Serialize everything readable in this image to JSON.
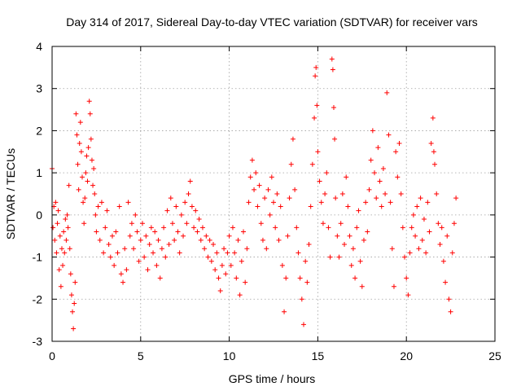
{
  "chart_data": {
    "type": "scatter",
    "title": "Day 314 of 2017, Sidereal Day-to-day VTEC variation (SDTVAR) for receiver vars",
    "xlabel": "GPS time / hours",
    "ylabel": "SDTVAR / TECUs",
    "xlim": [
      0,
      25
    ],
    "ylim": [
      -3,
      4
    ],
    "xticks": [
      0,
      5,
      10,
      15,
      20,
      25
    ],
    "yticks": [
      -3,
      -2,
      -1,
      0,
      1,
      2,
      3,
      4
    ],
    "grid": true,
    "marker": "+",
    "color": "#ff0000",
    "series": [
      {
        "name": "SDTVAR",
        "points": [
          [
            0.0,
            1.1
          ],
          [
            0.05,
            -0.3
          ],
          [
            0.1,
            0.2
          ],
          [
            0.15,
            -0.6
          ],
          [
            0.2,
            0.3
          ],
          [
            0.25,
            -0.9
          ],
          [
            0.3,
            -0.2
          ],
          [
            0.35,
            0.1
          ],
          [
            0.4,
            -1.3
          ],
          [
            0.45,
            -0.5
          ],
          [
            0.5,
            -1.7
          ],
          [
            0.55,
            -0.8
          ],
          [
            0.6,
            -1.2
          ],
          [
            0.65,
            -0.4
          ],
          [
            0.7,
            -0.9
          ],
          [
            0.75,
            -0.1
          ],
          [
            0.8,
            -0.6
          ],
          [
            0.85,
            0.0
          ],
          [
            0.9,
            -0.3
          ],
          [
            0.95,
            0.7
          ],
          [
            1.0,
            -0.8
          ],
          [
            1.05,
            -1.4
          ],
          [
            1.1,
            -1.9
          ],
          [
            1.15,
            -2.3
          ],
          [
            1.2,
            -2.7
          ],
          [
            1.25,
            -2.1
          ],
          [
            1.3,
            -1.6
          ],
          [
            1.35,
            2.4
          ],
          [
            1.4,
            1.9
          ],
          [
            1.45,
            1.2
          ],
          [
            1.5,
            0.6
          ],
          [
            1.55,
            1.7
          ],
          [
            1.6,
            2.2
          ],
          [
            1.65,
            1.5
          ],
          [
            1.7,
            0.9
          ],
          [
            1.75,
            0.3
          ],
          [
            1.8,
            -0.2
          ],
          [
            1.85,
            0.4
          ],
          [
            1.9,
            1.0
          ],
          [
            1.95,
            1.4
          ],
          [
            2.0,
            0.8
          ],
          [
            2.05,
            1.6
          ],
          [
            2.1,
            2.7
          ],
          [
            2.15,
            2.4
          ],
          [
            2.2,
            1.8
          ],
          [
            2.25,
            1.3
          ],
          [
            2.3,
            0.7
          ],
          [
            2.35,
            1.1
          ],
          [
            2.4,
            0.5
          ],
          [
            2.45,
            0.0
          ],
          [
            2.5,
            -0.4
          ],
          [
            2.6,
            0.2
          ],
          [
            2.7,
            -0.6
          ],
          [
            2.8,
            0.3
          ],
          [
            2.9,
            -0.9
          ],
          [
            3.0,
            -0.3
          ],
          [
            3.1,
            0.1
          ],
          [
            3.2,
            -0.7
          ],
          [
            3.3,
            -1.0
          ],
          [
            3.4,
            -0.5
          ],
          [
            3.5,
            -1.2
          ],
          [
            3.6,
            -0.4
          ],
          [
            3.7,
            -0.9
          ],
          [
            3.8,
            0.2
          ],
          [
            3.9,
            -1.4
          ],
          [
            4.0,
            -1.6
          ],
          [
            4.1,
            -0.8
          ],
          [
            4.2,
            -1.3
          ],
          [
            4.3,
            0.3
          ],
          [
            4.4,
            -0.5
          ],
          [
            4.5,
            -0.2
          ],
          [
            4.6,
            -0.8
          ],
          [
            4.7,
            0.0
          ],
          [
            4.8,
            -0.4
          ],
          [
            4.9,
            -1.1
          ],
          [
            5.0,
            -0.6
          ],
          [
            5.1,
            -0.2
          ],
          [
            5.2,
            -1.0
          ],
          [
            5.3,
            -0.5
          ],
          [
            5.4,
            -1.3
          ],
          [
            5.5,
            -0.7
          ],
          [
            5.6,
            -0.3
          ],
          [
            5.7,
            -0.9
          ],
          [
            5.8,
            -0.4
          ],
          [
            5.9,
            -1.2
          ],
          [
            6.0,
            -0.6
          ],
          [
            6.1,
            -1.5
          ],
          [
            6.2,
            -0.8
          ],
          [
            6.3,
            -0.3
          ],
          [
            6.4,
            -1.0
          ],
          [
            6.5,
            0.1
          ],
          [
            6.6,
            -0.7
          ],
          [
            6.7,
            0.4
          ],
          [
            6.8,
            -0.2
          ],
          [
            6.9,
            -0.6
          ],
          [
            7.0,
            0.2
          ],
          [
            7.1,
            -0.4
          ],
          [
            7.2,
            -0.9
          ],
          [
            7.3,
            0.0
          ],
          [
            7.4,
            -0.5
          ],
          [
            7.5,
            0.3
          ],
          [
            7.6,
            -0.2
          ],
          [
            7.7,
            0.5
          ],
          [
            7.8,
            0.8
          ],
          [
            7.9,
            0.2
          ],
          [
            8.0,
            -0.3
          ],
          [
            8.1,
            0.1
          ],
          [
            8.2,
            -0.4
          ],
          [
            8.3,
            -0.1
          ],
          [
            8.4,
            -0.6
          ],
          [
            8.5,
            -0.3
          ],
          [
            8.6,
            -0.8
          ],
          [
            8.7,
            -0.5
          ],
          [
            8.8,
            -1.0
          ],
          [
            8.9,
            -0.6
          ],
          [
            9.0,
            -1.1
          ],
          [
            9.1,
            -0.7
          ],
          [
            9.2,
            -1.3
          ],
          [
            9.3,
            -0.9
          ],
          [
            9.4,
            -1.5
          ],
          [
            9.5,
            -1.8
          ],
          [
            9.6,
            -1.2
          ],
          [
            9.7,
            -0.8
          ],
          [
            9.8,
            -1.4
          ],
          [
            9.9,
            -0.9
          ],
          [
            10.0,
            -0.5
          ],
          [
            10.1,
            -1.2
          ],
          [
            10.2,
            -0.3
          ],
          [
            10.3,
            -0.9
          ],
          [
            10.4,
            -1.5
          ],
          [
            10.5,
            -0.6
          ],
          [
            10.6,
            -1.9
          ],
          [
            10.7,
            -1.1
          ],
          [
            10.8,
            -0.4
          ],
          [
            10.9,
            -1.6
          ],
          [
            11.0,
            -0.8
          ],
          [
            11.1,
            0.3
          ],
          [
            11.2,
            0.9
          ],
          [
            11.3,
            1.3
          ],
          [
            11.4,
            0.6
          ],
          [
            11.5,
            1.0
          ],
          [
            11.6,
            0.2
          ],
          [
            11.7,
            0.7
          ],
          [
            11.8,
            -0.2
          ],
          [
            11.9,
            -0.6
          ],
          [
            12.0,
            0.4
          ],
          [
            12.1,
            -0.8
          ],
          [
            12.2,
            0.6
          ],
          [
            12.3,
            0.0
          ],
          [
            12.4,
            0.9
          ],
          [
            12.5,
            0.3
          ],
          [
            12.6,
            -0.3
          ],
          [
            12.7,
            0.5
          ],
          [
            12.8,
            -0.6
          ],
          [
            12.9,
            0.2
          ],
          [
            13.0,
            -1.2
          ],
          [
            13.1,
            -2.3
          ],
          [
            13.2,
            -1.5
          ],
          [
            13.3,
            -0.5
          ],
          [
            13.4,
            0.4
          ],
          [
            13.5,
            1.2
          ],
          [
            13.6,
            1.8
          ],
          [
            13.7,
            0.6
          ],
          [
            13.8,
            -0.3
          ],
          [
            13.9,
            -0.9
          ],
          [
            14.0,
            -1.5
          ],
          [
            14.1,
            -2.0
          ],
          [
            14.2,
            -2.6
          ],
          [
            14.3,
            -1.1
          ],
          [
            14.4,
            -1.6
          ],
          [
            14.5,
            -0.7
          ],
          [
            14.6,
            0.2
          ],
          [
            14.7,
            1.2
          ],
          [
            14.8,
            2.3
          ],
          [
            14.85,
            3.3
          ],
          [
            14.9,
            3.5
          ],
          [
            14.95,
            2.6
          ],
          [
            15.0,
            1.5
          ],
          [
            15.1,
            0.8
          ],
          [
            15.2,
            0.3
          ],
          [
            15.3,
            -0.2
          ],
          [
            15.4,
            0.5
          ],
          [
            15.5,
            1.0
          ],
          [
            15.6,
            -0.3
          ],
          [
            15.7,
            -1.0
          ],
          [
            15.8,
            3.7
          ],
          [
            15.85,
            3.45
          ],
          [
            15.9,
            2.55
          ],
          [
            15.95,
            1.8
          ],
          [
            16.0,
            0.4
          ],
          [
            16.1,
            -0.5
          ],
          [
            16.2,
            -1.0
          ],
          [
            16.3,
            -0.2
          ],
          [
            16.4,
            0.5
          ],
          [
            16.5,
            -0.7
          ],
          [
            16.6,
            0.9
          ],
          [
            16.7,
            0.2
          ],
          [
            16.8,
            -0.5
          ],
          [
            16.9,
            -1.2
          ],
          [
            17.0,
            -0.8
          ],
          [
            17.1,
            -1.5
          ],
          [
            17.2,
            -0.3
          ],
          [
            17.3,
            0.1
          ],
          [
            17.4,
            -1.1
          ],
          [
            17.5,
            -1.7
          ],
          [
            17.6,
            -0.6
          ],
          [
            17.7,
            0.3
          ],
          [
            17.8,
            -0.4
          ],
          [
            17.9,
            0.6
          ],
          [
            18.0,
            1.3
          ],
          [
            18.1,
            2.0
          ],
          [
            18.2,
            1.0
          ],
          [
            18.3,
            0.4
          ],
          [
            18.4,
            1.6
          ],
          [
            18.5,
            0.8
          ],
          [
            18.6,
            0.2
          ],
          [
            18.7,
            1.1
          ],
          [
            18.8,
            0.5
          ],
          [
            18.9,
            2.9
          ],
          [
            19.0,
            1.9
          ],
          [
            19.1,
            0.3
          ],
          [
            19.2,
            -0.8
          ],
          [
            19.3,
            -1.7
          ],
          [
            19.4,
            1.5
          ],
          [
            19.5,
            0.9
          ],
          [
            19.6,
            1.7
          ],
          [
            19.7,
            0.5
          ],
          [
            19.8,
            -0.3
          ],
          [
            19.9,
            -1.0
          ],
          [
            20.0,
            -1.5
          ],
          [
            20.1,
            -1.9
          ],
          [
            20.2,
            -0.9
          ],
          [
            20.3,
            -0.3
          ],
          [
            20.4,
            0.0
          ],
          [
            20.5,
            -0.5
          ],
          [
            20.6,
            0.2
          ],
          [
            20.7,
            -0.8
          ],
          [
            20.8,
            0.4
          ],
          [
            20.9,
            -0.6
          ],
          [
            21.0,
            -0.1
          ],
          [
            21.1,
            -0.9
          ],
          [
            21.2,
            0.3
          ],
          [
            21.3,
            -0.4
          ],
          [
            21.4,
            1.7
          ],
          [
            21.5,
            2.3
          ],
          [
            21.55,
            1.5
          ],
          [
            21.6,
            1.2
          ],
          [
            21.7,
            0.5
          ],
          [
            21.8,
            -0.2
          ],
          [
            21.9,
            -0.7
          ],
          [
            22.0,
            -0.3
          ],
          [
            22.1,
            -1.1
          ],
          [
            22.2,
            -1.6
          ],
          [
            22.3,
            -0.5
          ],
          [
            22.4,
            -2.0
          ],
          [
            22.5,
            -2.3
          ],
          [
            22.6,
            -0.9
          ],
          [
            22.7,
            -0.2
          ],
          [
            22.8,
            0.4
          ]
        ]
      }
    ]
  }
}
